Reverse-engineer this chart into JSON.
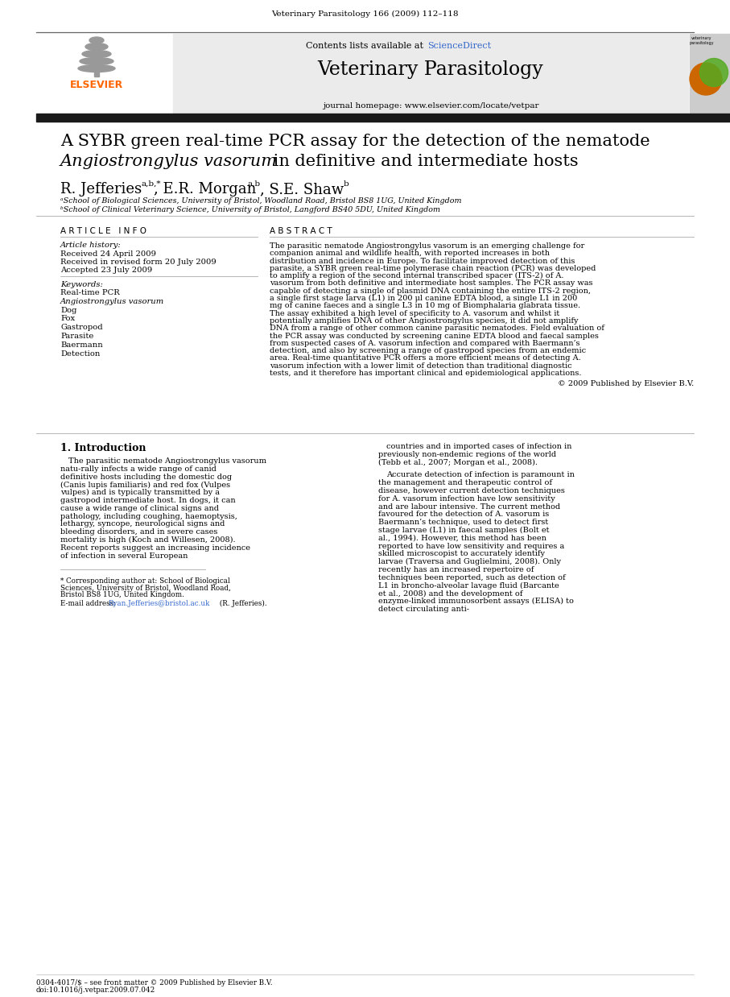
{
  "page_header": "Veterinary Parasitology 166 (2009) 112–118",
  "journal_name": "Veterinary Parasitology",
  "contents_line": "Contents lists available at ScienceDirect",
  "journal_homepage": "journal homepage: www.elsevier.com/locate/vetpar",
  "title_line1": "A SYBR green real-time PCR assay for the detection of the nematode",
  "title_line2_normal": " in definitive and intermediate hosts",
  "title_line2_italic": "Angiostrongylus vasorum",
  "affil_a": "ᵃSchool of Biological Sciences, University of Bristol, Woodland Road, Bristol BS8 1UG, United Kingdom",
  "affil_b": "ᵇSchool of Clinical Veterinary Science, University of Bristol, Langford BS40 5DU, United Kingdom",
  "received1": "Received 24 April 2009",
  "received2": "Received in revised form 20 July 2009",
  "accepted": "Accepted 23 July 2009",
  "keywords": [
    "Real-time PCR",
    "Angiostrongylus vasorum",
    "Dog",
    "Fox",
    "Gastropod",
    "Parasite",
    "Baermann",
    "Detection"
  ],
  "keywords_italic": [
    false,
    true,
    false,
    false,
    false,
    false,
    false,
    false
  ],
  "abstract_text": "The parasitic nematode Angiostrongylus vasorum is an emerging challenge for companion animal and wildlife health, with reported increases in both distribution and incidence in Europe. To facilitate improved detection of this parasite, a SYBR green real-time polymerase chain reaction (PCR) was developed to amplify a region of the second internal transcribed spacer (ITS-2) of A. vasorum from both definitive and intermediate host samples. The PCR assay was capable of detecting a single of plasmid DNA containing the entire ITS-2 region, a single first stage larva (L1) in 200 μl canine EDTA blood, a single L1 in 200 mg of canine faeces and a single L3 in 10 mg of Biomphalaria glabrata tissue. The assay exhibited a high level of specificity to A. vasorum and whilst it potentially amplifies DNA of other Angiostrongylus species, it did not amplify DNA from a range of other common canine parasitic nematodes. Field evaluation of the PCR assay was conducted by screening canine EDTA blood and faecal samples from suspected cases of A. vasorum infection and compared with Baermann’s detection, and also by screening a range of gastropod species from an endemic area. Real-time quantitative PCR offers a more efficient means of detecting A. vasorum infection with a lower limit of detection than traditional diagnostic tests, and it therefore has important clinical and epidemiological applications.",
  "copyright": "© 2009 Published by Elsevier B.V.",
  "section1_title": "1. Introduction",
  "section1_col1": "The parasitic nematode Angiostrongylus vasorum natu-rally infects a wide range of canid definitive hosts including the domestic dog (Canis lupis familiaris) and red fox (Vulpes vulpes) and is typically transmitted by a gastropod intermediate host. In dogs, it can cause a wide range of clinical signs and pathology, including coughing, haemoptysis, lethargy, syncope, neurological signs and bleeding disorders, and in severe cases mortality is high (Koch and Willesen, 2008). Recent reports suggest an increasing incidence of infection in several European",
  "section1_col2": "countries and in imported cases of infection in previously non-endemic regions of the world (Tebb et al., 2007; Morgan et al., 2008).\n\nAccurate detection of infection is paramount in the management and therapeutic control of disease, however current detection techniques for A. vasorum infection have low sensitivity and are labour intensive. The current method favoured for the detection of A. vasorum is Baermann’s technique, used to detect first stage larvae (L1) in faecal samples (Bolt et al., 1994). However, this method has been reported to have low sensitivity and requires a skilled microscopist to accurately identify larvae (Traversa and Guglielmini, 2008). Only recently has an increased repertoire of techniques been reported, such as detection of L1 in broncho-alveolar lavage fluid (Barcante et al., 2008) and the development of enzyme-linked immunosorbent assays (ELISA) to detect circulating anti-",
  "footnote_corresponding": "* Corresponding author at: School of Biological Sciences, University of Bristol, Woodland Road, Bristol BS8 1UG, United Kingdom.",
  "footnote_email_label": "E-mail address: ",
  "footnote_email_link": "Ryan.Jefferies@bristol.ac.uk",
  "footnote_email_rest": " (R. Jefferies).",
  "footer_line1": "0304-4017/$ – see front matter © 2009 Published by Elsevier B.V.",
  "footer_line2": "doi:10.1016/j.vetpar.2009.07.042",
  "bg_color": "#ffffff",
  "header_bg": "#ebebeb",
  "dark_bar_color": "#1a1a1a",
  "link_color": "#3366cc",
  "text_color": "#000000",
  "elsevier_orange": "#FF6600"
}
